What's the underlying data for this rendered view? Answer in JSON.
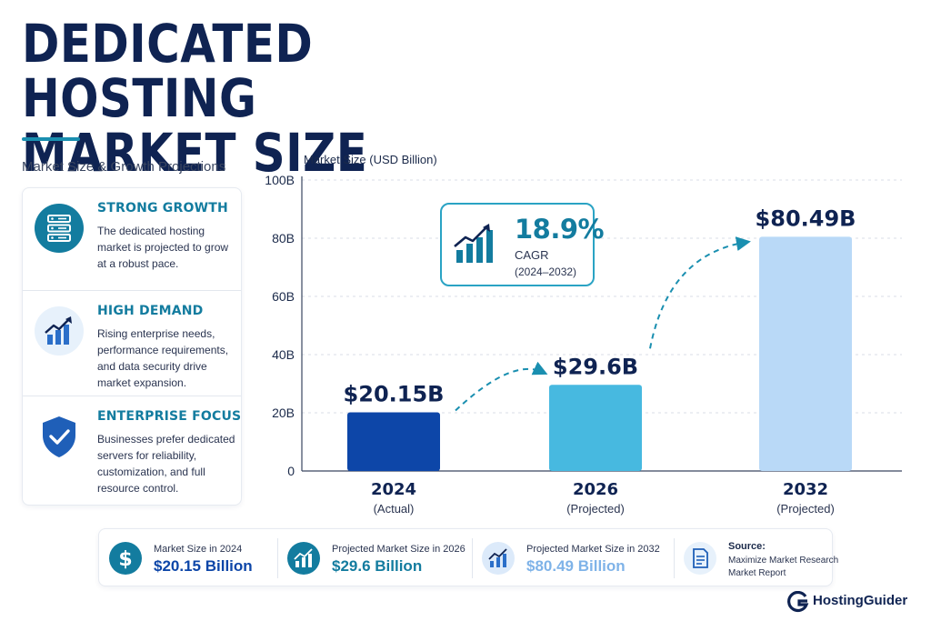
{
  "title": {
    "line1": "DEDICATED HOSTING",
    "line2": "MARKET SIZE"
  },
  "subtitle": "Market Size & Growth Projections",
  "cards": [
    {
      "icon": "server-icon",
      "heading": "STRONG GROWTH",
      "text": "The dedicated hosting market is projected to grow at a robust pace."
    },
    {
      "icon": "growth-chart-icon",
      "heading": "HIGH DEMAND",
      "text": "Rising enterprise needs, performance requirements, and data security drive market expansion."
    },
    {
      "icon": "shield-check-icon",
      "heading": "ENTERPRISE FOCUS",
      "text": "Businesses prefer dedicated servers for reliability, customization, and full resource control."
    }
  ],
  "chart_data": {
    "type": "bar",
    "ylabel": "Market Size (USD Billion)",
    "ylim": [
      0,
      100
    ],
    "yticks": [
      0,
      20,
      40,
      60,
      80,
      100
    ],
    "ytick_labels": [
      "0",
      "20B",
      "40B",
      "60B",
      "80B",
      "100B"
    ],
    "categories": [
      "2024",
      "2026",
      "2032"
    ],
    "category_notes": [
      "(Actual)",
      "(Projected)",
      "(Projected)"
    ],
    "values": [
      20.15,
      29.6,
      80.49
    ],
    "value_labels": [
      "$20.15B",
      "$29.6B",
      "$80.49B"
    ],
    "bar_colors": [
      "#0d46a8",
      "#47b9e0",
      "#b9d9f7"
    ],
    "grid": true,
    "cagr": {
      "value": "18.9%",
      "label": "CAGR",
      "range": "(2024–2032)"
    }
  },
  "stats": [
    {
      "icon": "dollar-icon",
      "label": "Market Size in 2024",
      "value": "$20.15 Billion",
      "color": "#0d46a8"
    },
    {
      "icon": "growth-chart-icon",
      "label": "Projected Market Size in 2026",
      "value": "$29.6 Billion",
      "color": "#137c9f"
    },
    {
      "icon": "growth-chart-icon",
      "label": "Projected Market Size in 2032",
      "value": "$80.49 Billion",
      "color": "#7fb3e8"
    }
  ],
  "source": {
    "icon": "document-icon",
    "title": "Source:",
    "line1": "Maximize Market Research",
    "line2": "Market Report"
  },
  "brand": {
    "name": "HostingGuider"
  },
  "colors": {
    "navy": "#0f2352",
    "teal": "#137c9f",
    "accent": "#2aa3c4"
  }
}
